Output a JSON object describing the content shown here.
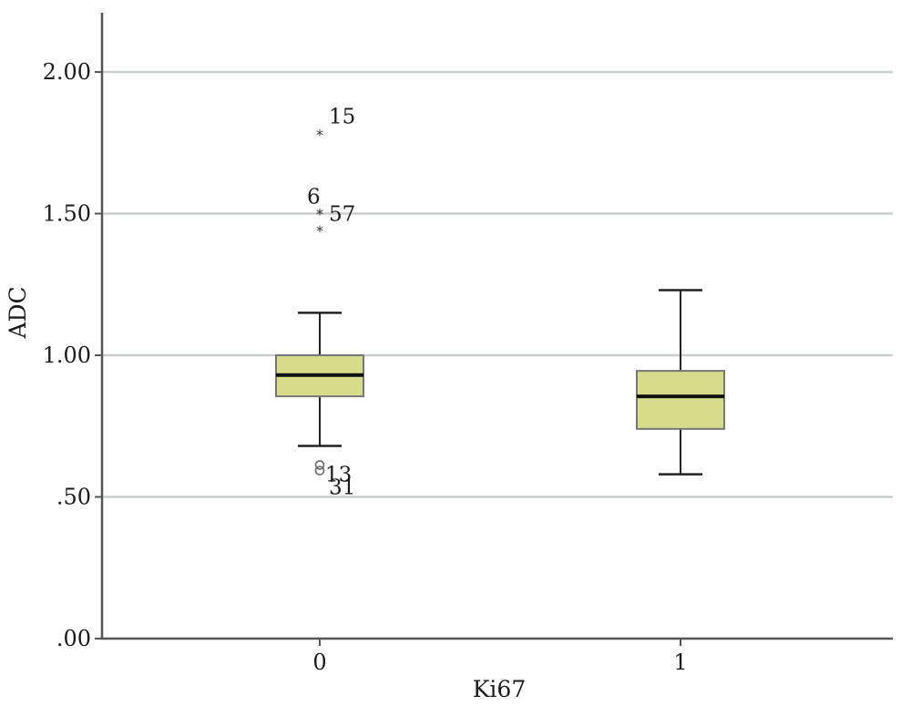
{
  "chart_data": {
    "type": "boxplot",
    "xlabel": "Ki67",
    "ylabel": "ADC",
    "ylim": [
      0,
      2.2
    ],
    "y_ticks": [
      {
        "value": 0.0,
        "label": ".00"
      },
      {
        "value": 0.5,
        "label": ".50"
      },
      {
        "value": 1.0,
        "label": "1.00"
      },
      {
        "value": 1.5,
        "label": "1.50"
      },
      {
        "value": 2.0,
        "label": "2.00"
      }
    ],
    "grid": true,
    "box_fill": "#d6dc8a",
    "box_stroke": "#777777",
    "categories": [
      "0",
      "1"
    ],
    "boxes": [
      {
        "category": "0",
        "whisker_low": 0.68,
        "q1": 0.855,
        "median": 0.93,
        "q3": 1.0,
        "whisker_high": 1.15,
        "outliers": [
          {
            "value": 1.78,
            "label": "15",
            "marker": "star"
          },
          {
            "value": 1.5,
            "label": "57",
            "marker": "star"
          },
          {
            "value": 1.5,
            "label": "6",
            "marker": "star"
          },
          {
            "value": 1.44,
            "label": "",
            "marker": "star"
          },
          {
            "value": 0.6,
            "label": "13",
            "marker": "circle"
          },
          {
            "value": 0.58,
            "label": "31",
            "marker": "circle"
          }
        ]
      },
      {
        "category": "1",
        "whisker_low": 0.58,
        "q1": 0.74,
        "median": 0.855,
        "q3": 0.945,
        "whisker_high": 1.23,
        "outliers": []
      }
    ]
  }
}
